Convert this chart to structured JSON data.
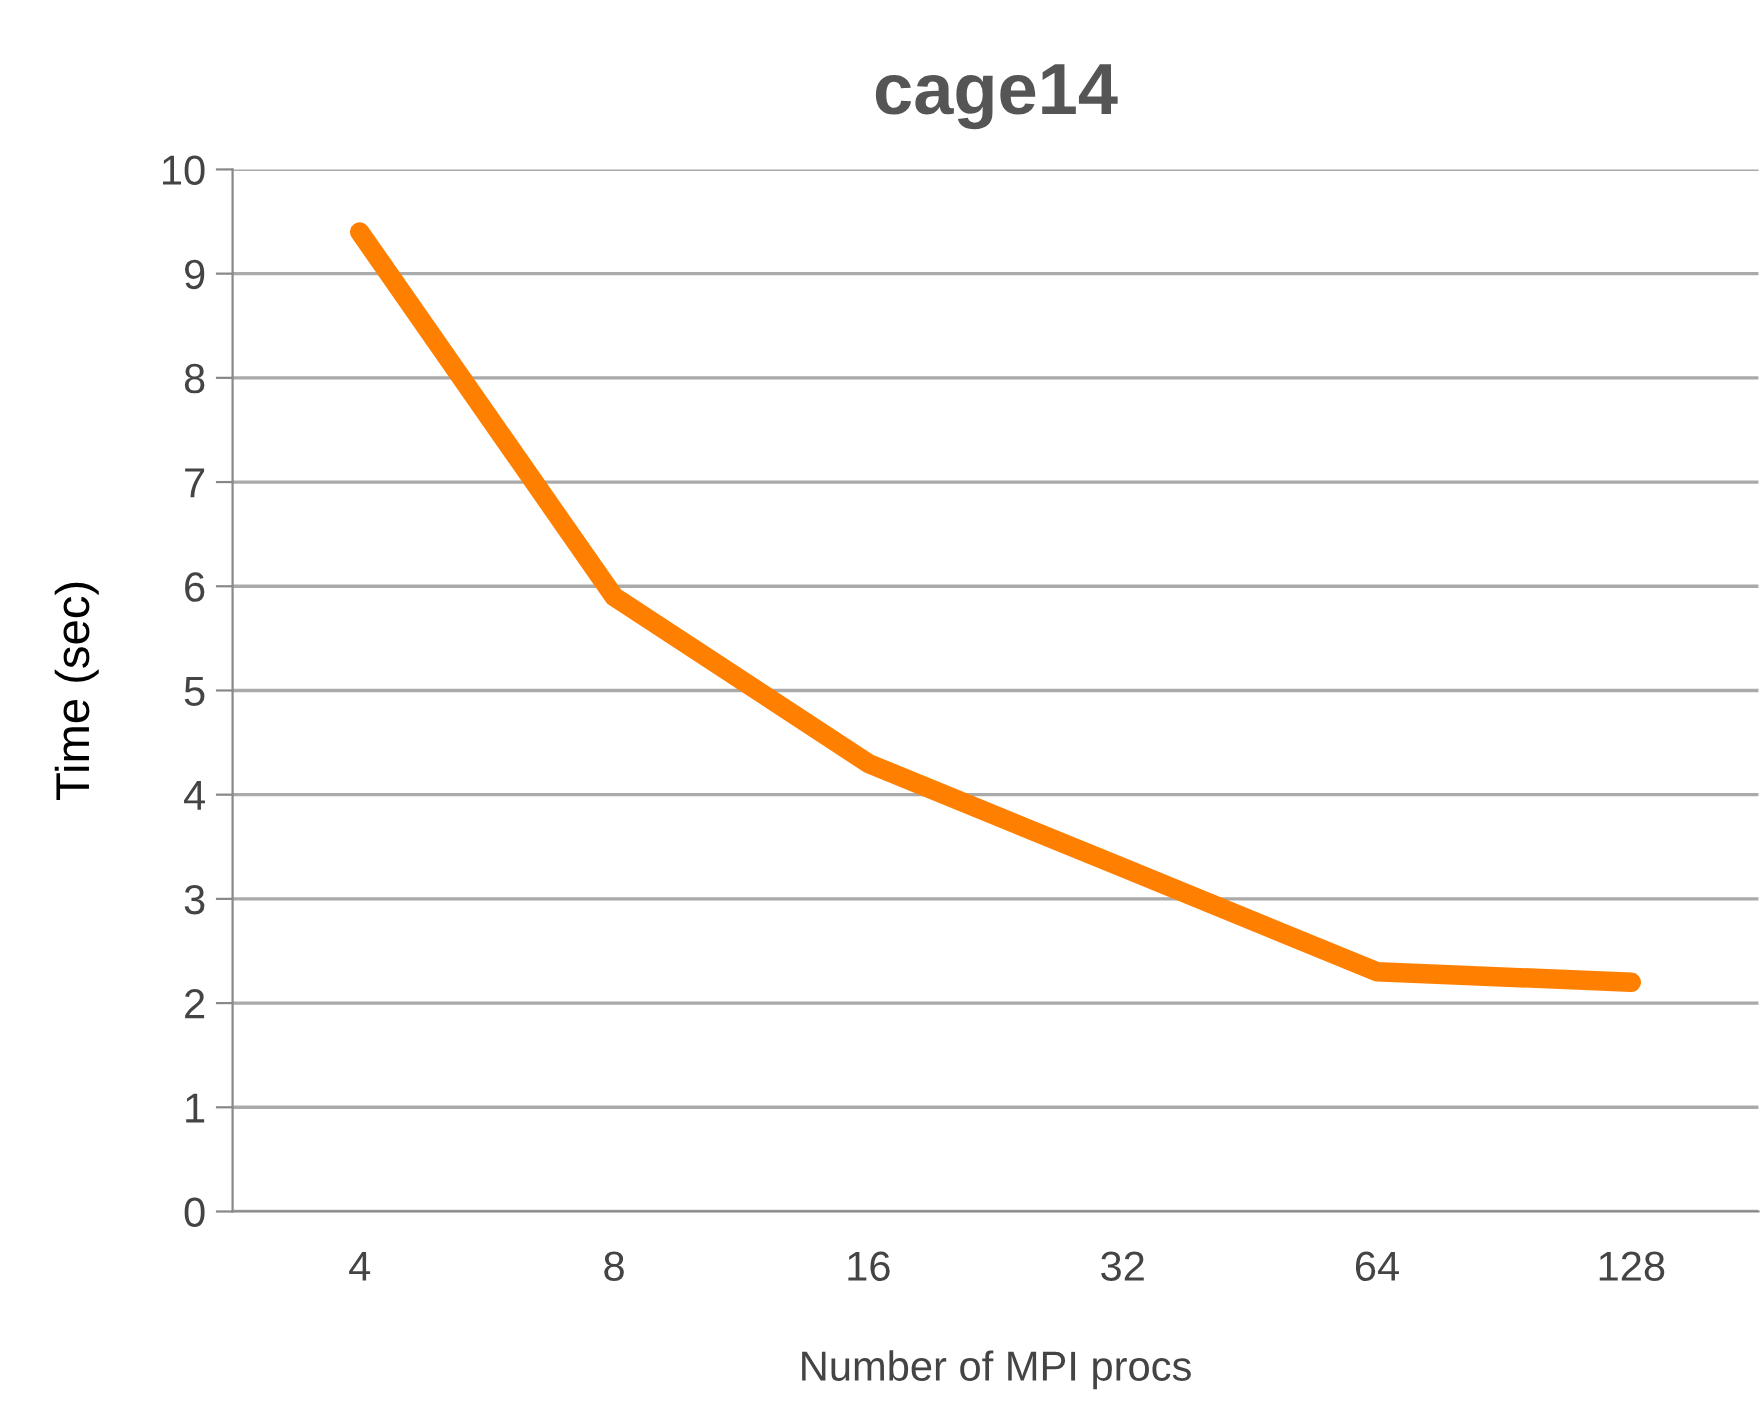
{
  "chart_data": {
    "type": "line",
    "title": "cage14",
    "xlabel": "Number of MPI procs",
    "ylabel": "Time (sec)",
    "categories": [
      "4",
      "8",
      "16",
      "32",
      "64",
      "128"
    ],
    "series": [
      {
        "color": "#ff8000",
        "values": [
          9.4,
          5.9,
          4.3,
          3.3,
          2.3,
          2.2
        ]
      }
    ],
    "ylim": [
      0,
      10
    ],
    "yticks": [
      0,
      1,
      2,
      3,
      4,
      5,
      6,
      7,
      8,
      9,
      10
    ],
    "grid": "y",
    "legend": false,
    "marker": "none",
    "line_style": "solid"
  }
}
